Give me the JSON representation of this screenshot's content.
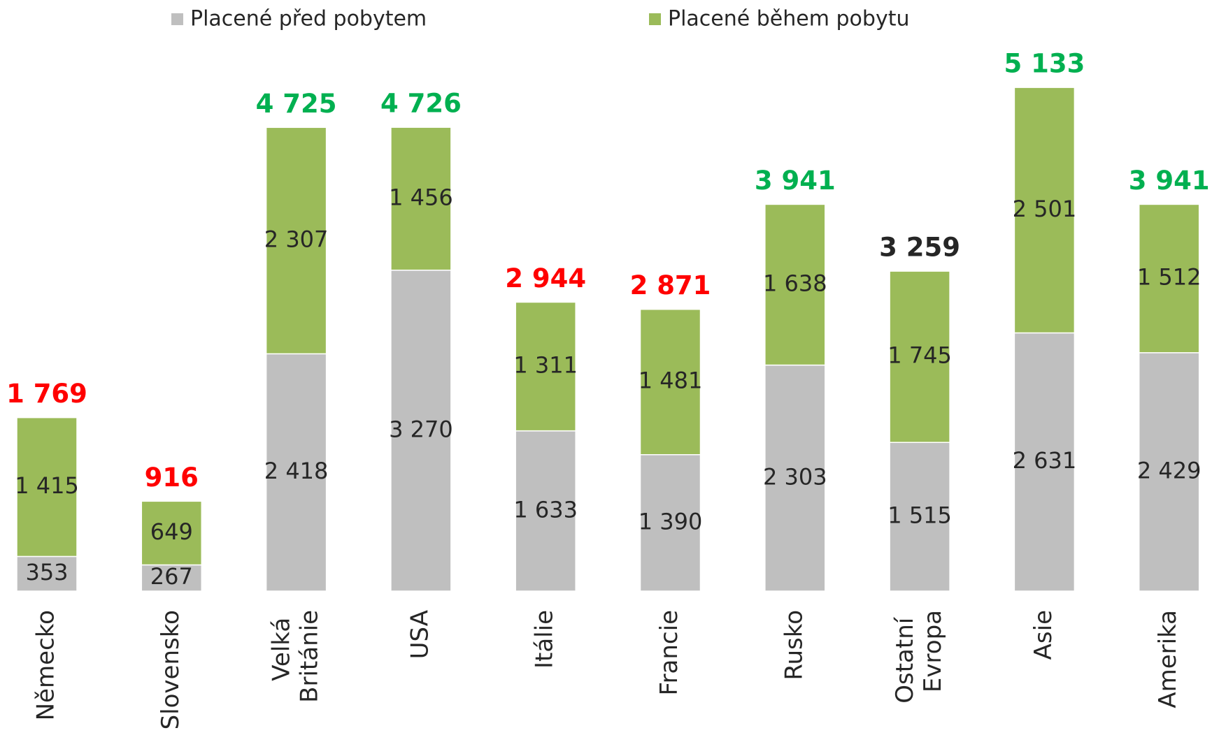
{
  "chart_data": {
    "type": "stacked_bar",
    "categories": [
      "Německo",
      "Slovensko",
      "Velká Británie",
      "USA",
      "Itálie",
      "Francie",
      "Rusko",
      "Ostatní Evropa",
      "Asie",
      "Amerika"
    ],
    "series": [
      {
        "name": "Placené před pobytem",
        "color": "#bfbfbf",
        "values": [
          353,
          267,
          2418,
          3270,
          1633,
          1390,
          2303,
          1515,
          2631,
          2429
        ],
        "value_labels": [
          "353",
          "267",
          "2 418",
          "3 270",
          "1 633",
          "1 390",
          "2 303",
          "1 515",
          "2 631",
          "2 429"
        ]
      },
      {
        "name": "Placené během pobytu",
        "color": "#9bbb59",
        "values": [
          1415,
          649,
          2307,
          1456,
          1311,
          1481,
          1638,
          1745,
          2501,
          1512
        ],
        "value_labels": [
          "1 415",
          "649",
          "2 307",
          "1 456",
          "1 311",
          "1 481",
          "1 638",
          "1 745",
          "2 501",
          "1 512"
        ]
      }
    ],
    "totals": [
      1769,
      916,
      4725,
      4726,
      2944,
      2871,
      3941,
      3259,
      5133,
      3941
    ],
    "total_labels": [
      "1 769",
      "916",
      "4 725",
      "4 726",
      "2 944",
      "2 871",
      "3 941",
      "3 259",
      "5 133",
      "3 941"
    ],
    "total_colors": [
      "#ff0000",
      "#ff0000",
      "#00b050",
      "#00b050",
      "#ff0000",
      "#ff0000",
      "#00b050",
      "#262626",
      "#00b050",
      "#00b050"
    ],
    "ylim": [
      0,
      5133
    ],
    "legend": "top"
  }
}
